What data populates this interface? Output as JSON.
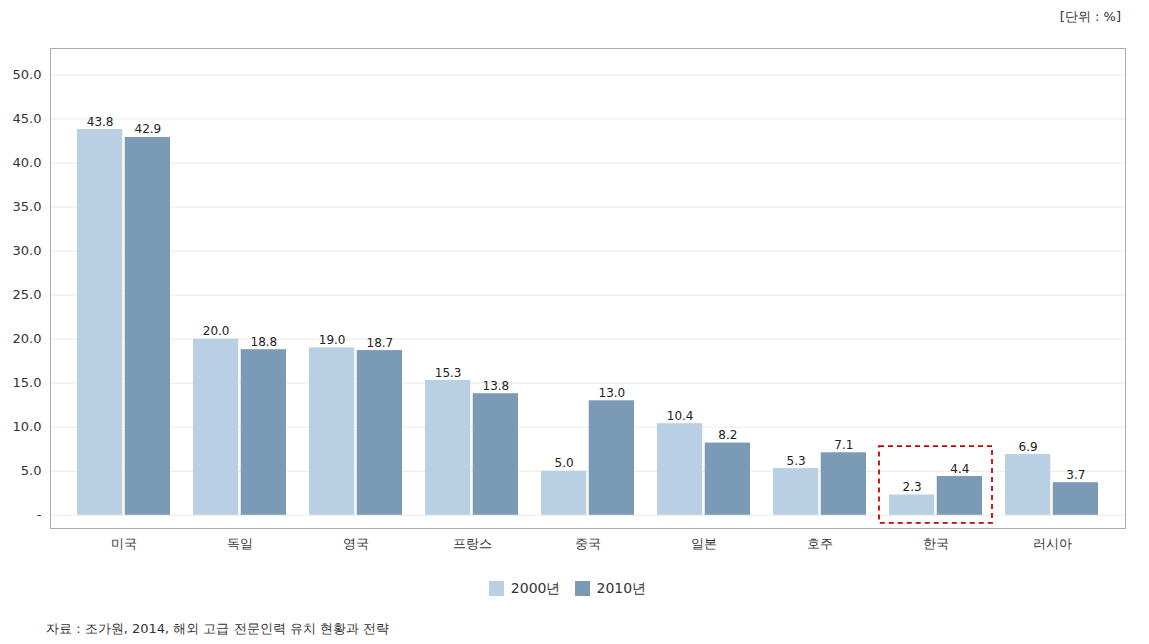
{
  "chart_data": {
    "type": "bar",
    "categories": [
      "미국",
      "독일",
      "영국",
      "프랑스",
      "중국",
      "일본",
      "호주",
      "한국",
      "러시아"
    ],
    "series": [
      {
        "name": "2000년",
        "color": "#b8cfe4",
        "values": [
          43.8,
          20.0,
          19.0,
          15.3,
          5.0,
          10.4,
          5.3,
          2.3,
          6.9
        ],
        "value_labels": [
          "43.8",
          "20.0",
          "19.0",
          "15.3",
          "5.0",
          "10.4",
          "5.3",
          "2.3",
          "6.9"
        ]
      },
      {
        "name": "2010년",
        "color": "#7b9ab5",
        "values": [
          42.9,
          18.8,
          18.7,
          13.8,
          13.0,
          8.2,
          7.1,
          4.4,
          3.7
        ],
        "value_labels": [
          "42.9",
          "18.8",
          "18.7",
          "13.8",
          "13.0",
          "8.2",
          "7.1",
          "4.4",
          "3.7"
        ]
      }
    ],
    "ylim": [
      -1.5,
      53
    ],
    "yticks": [
      {
        "value": 0,
        "label": "-"
      },
      {
        "value": 5,
        "label": "5.0"
      },
      {
        "value": 10,
        "label": "10.0"
      },
      {
        "value": 15,
        "label": "15.0"
      },
      {
        "value": 20,
        "label": "20.0"
      },
      {
        "value": 25,
        "label": "25.0"
      },
      {
        "value": 30,
        "label": "30.0"
      },
      {
        "value": 35,
        "label": "35.0"
      },
      {
        "value": 40,
        "label": "40.0"
      },
      {
        "value": 45,
        "label": "45.0"
      },
      {
        "value": 50,
        "label": "50.0"
      }
    ],
    "grid": true,
    "legend": "bottom",
    "data_labels": true,
    "annotations": [
      "[단위 : %]",
      "자료 : 조가원, 2014, 해외 고급 전문인력 유치 현황과 전략"
    ],
    "highlight": {
      "category": "한국",
      "color": "#cc0000",
      "line_style": "dashed"
    }
  }
}
